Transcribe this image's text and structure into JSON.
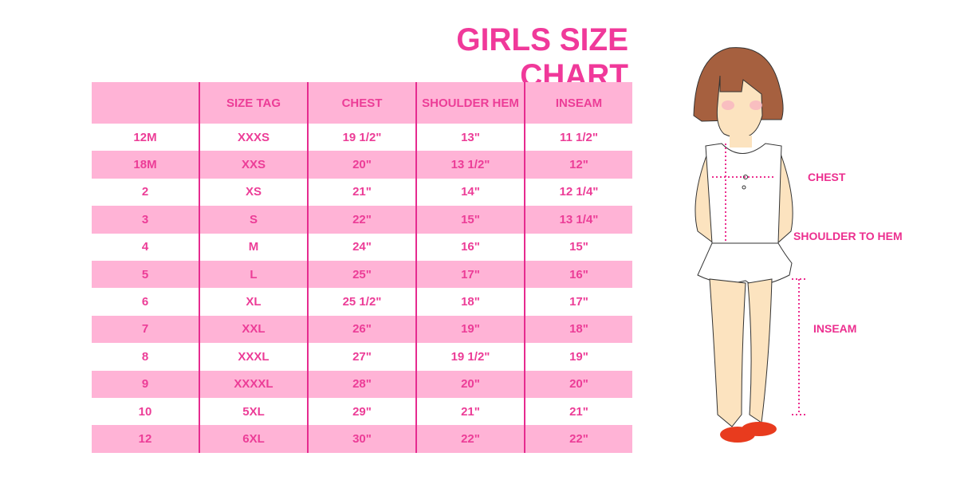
{
  "title": "GIRLS SIZE CHART",
  "chart_data": {
    "type": "table",
    "title": "GIRLS SIZE CHART",
    "columns": [
      "",
      "SIZE TAG",
      "CHEST",
      "SHOULDER HEM",
      "INSEAM"
    ],
    "rows": [
      [
        "12M",
        "XXXS",
        "19 1/2\"",
        "13\"",
        "11 1/2\""
      ],
      [
        "18M",
        "XXS",
        "20\"",
        "13 1/2\"",
        "12\""
      ],
      [
        "2",
        "XS",
        "21\"",
        "14\"",
        "12 1/4\""
      ],
      [
        "3",
        "S",
        "22\"",
        "15\"",
        "13 1/4\""
      ],
      [
        "4",
        "M",
        "24\"",
        "16\"",
        "15\""
      ],
      [
        "5",
        "L",
        "25\"",
        "17\"",
        "16\""
      ],
      [
        "6",
        "XL",
        "25 1/2\"",
        "18\"",
        "17\""
      ],
      [
        "7",
        "XXL",
        "26\"",
        "19\"",
        "18\""
      ],
      [
        "8",
        "XXXL",
        "27\"",
        "19 1/2\"",
        "19\""
      ],
      [
        "9",
        "XXXXL",
        "28\"",
        "20\"",
        "20\""
      ],
      [
        "10",
        "5XL",
        "29\"",
        "21\"",
        "21\""
      ],
      [
        "12",
        "6XL",
        "30\"",
        "22\"",
        "22\""
      ]
    ]
  },
  "illustration": {
    "labels": {
      "chest": "CHEST",
      "shoulder_to_hem": "SHOULDER TO HEM",
      "inseam": "INSEAM"
    }
  },
  "colors": {
    "accent": "#ec3d97",
    "band": "#ffb3d6",
    "divider": "#e62b8f"
  }
}
